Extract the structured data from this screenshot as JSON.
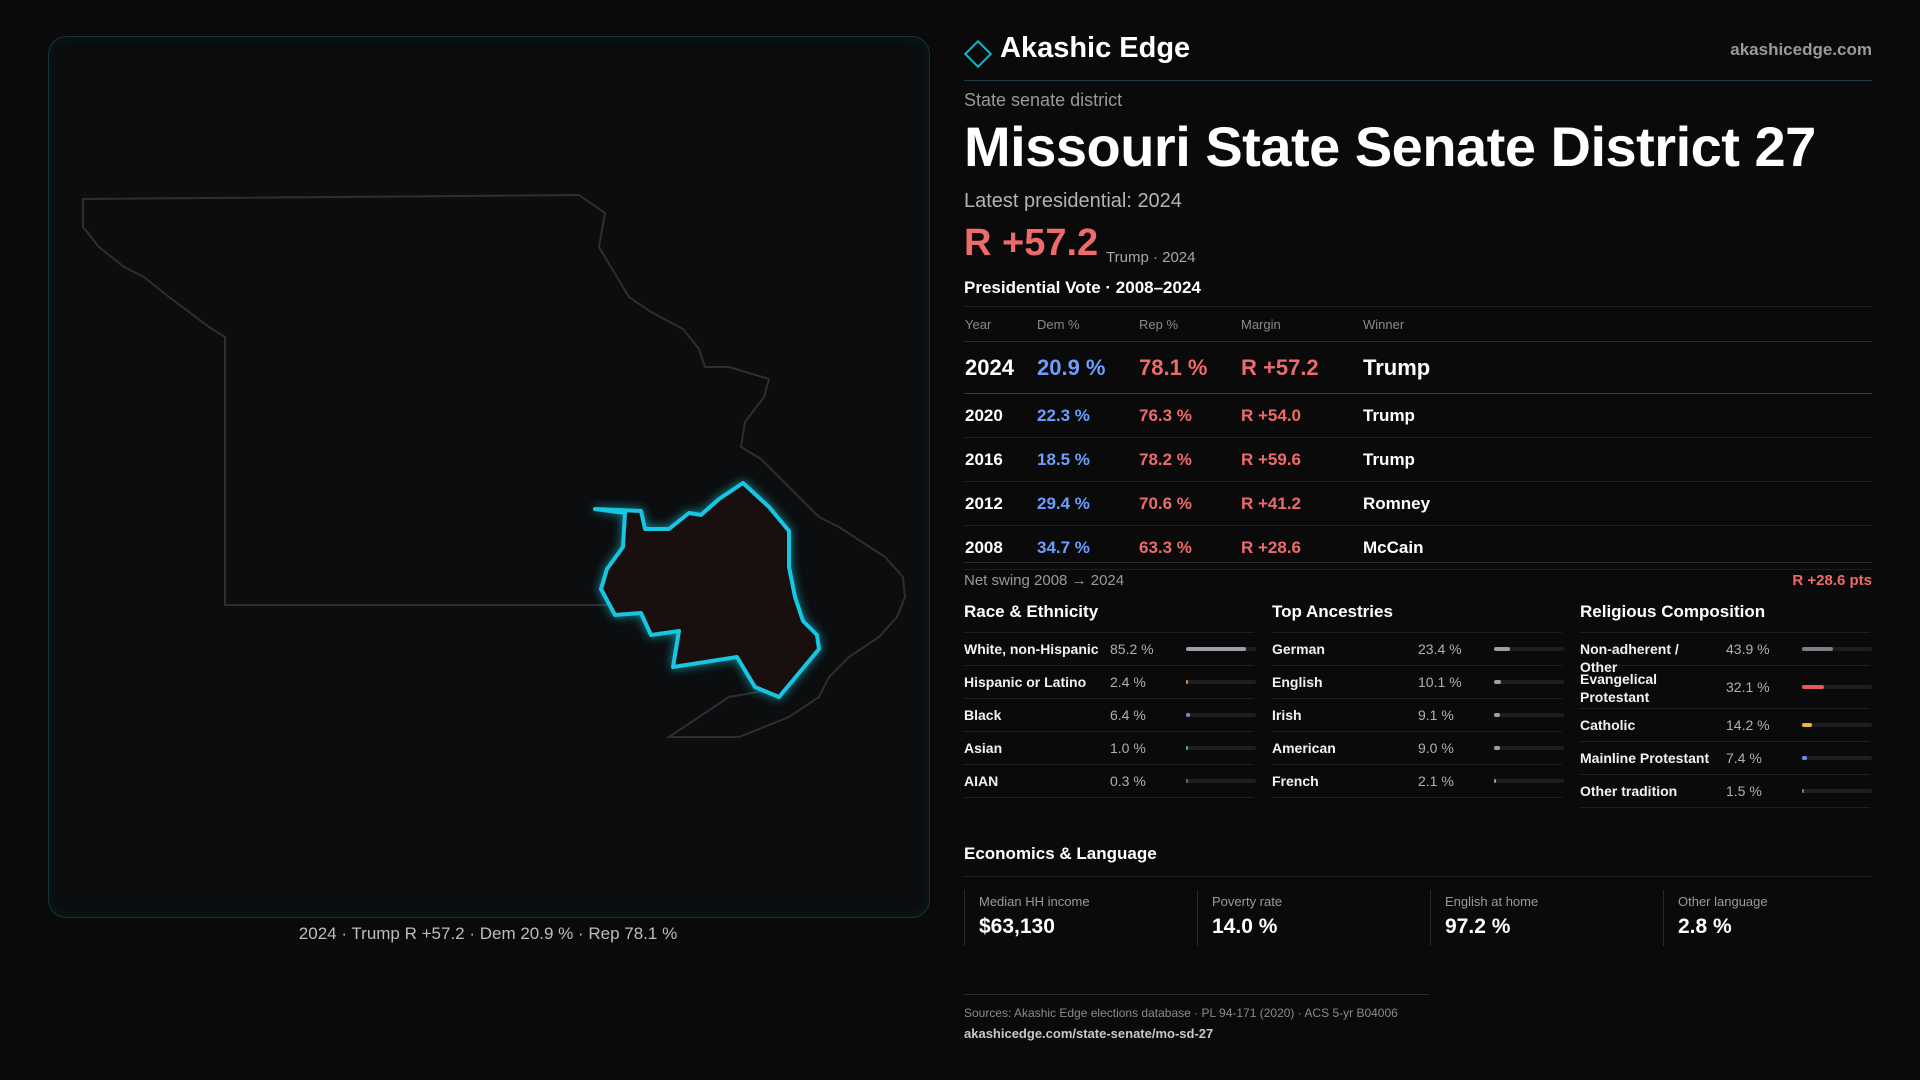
{
  "map": {
    "caption": "2024 · Trump R +57.2 · Dem 20.9 % · Rep 78.1 %",
    "district_color": "#17c6e0",
    "state_outline_color": "#2e2e31"
  },
  "brand": {
    "name": "Akashic Edge",
    "url": "akashicedge.com",
    "icon": "diamond-icon"
  },
  "header": {
    "eyebrow": "State senate district",
    "title": "Missouri State Senate District 27",
    "latest": "Latest presidential: 2024",
    "margin": "R +57.2",
    "margin_sub": "Trump · 2024"
  },
  "vote_table": {
    "title": "Presidential Vote · 2008–2024",
    "headers": [
      "Year",
      "Dem %",
      "Rep %",
      "Margin",
      "Winner"
    ],
    "rows": [
      {
        "year": "2024",
        "dem": "20.9 %",
        "rep": "78.1 %",
        "margin": "R +57.2",
        "winner": "Trump"
      },
      {
        "year": "2020",
        "dem": "22.3 %",
        "rep": "76.3 %",
        "margin": "R +54.0",
        "winner": "Trump"
      },
      {
        "year": "2016",
        "dem": "18.5 %",
        "rep": "78.2 %",
        "margin": "R +59.6",
        "winner": "Trump"
      },
      {
        "year": "2012",
        "dem": "29.4 %",
        "rep": "70.6 %",
        "margin": "R +41.2",
        "winner": "Romney"
      },
      {
        "year": "2008",
        "dem": "34.7 %",
        "rep": "63.3 %",
        "margin": "R +28.6",
        "winner": "McCain"
      }
    ]
  },
  "swing": {
    "label": "Net swing 2008 → 2024",
    "value": "R +28.6 pts"
  },
  "race": {
    "title": "Race & Ethnicity",
    "rows": [
      {
        "label": "White, non-Hispanic",
        "value": "85.2 %",
        "pct": 85.2,
        "color": "#9aa0aa"
      },
      {
        "label": "Hispanic or Latino",
        "value": "2.4 %",
        "pct": 2.4,
        "color": "#e8873a"
      },
      {
        "label": "Black",
        "value": "6.4 %",
        "pct": 6.4,
        "color": "#8a7fe8"
      },
      {
        "label": "Asian",
        "value": "1.0 %",
        "pct": 1.0,
        "color": "#3ab88a"
      },
      {
        "label": "AIAN",
        "value": "0.3 %",
        "pct": 0.3,
        "color": "#6a6a6a"
      }
    ]
  },
  "ancestry": {
    "title": "Top Ancestries",
    "rows": [
      {
        "label": "German",
        "value": "23.4 %",
        "pct": 23.4,
        "color": "#9aa0aa"
      },
      {
        "label": "English",
        "value": "10.1 %",
        "pct": 10.1,
        "color": "#9aa0aa"
      },
      {
        "label": "Irish",
        "value": "9.1 %",
        "pct": 9.1,
        "color": "#9aa0aa"
      },
      {
        "label": "American",
        "value": "9.0 %",
        "pct": 9.0,
        "color": "#9aa0aa"
      },
      {
        "label": "French",
        "value": "2.1 %",
        "pct": 2.1,
        "color": "#9aa0aa"
      }
    ]
  },
  "religion": {
    "title": "Religious Composition",
    "rows": [
      {
        "label": "Non-adherent / Other",
        "value": "43.9 %",
        "pct": 43.9,
        "color": "#7a808a"
      },
      {
        "label": "Evangelical Protestant",
        "value": "32.1 %",
        "pct": 32.1,
        "color": "#e85a5a"
      },
      {
        "label": "Catholic",
        "value": "14.2 %",
        "pct": 14.2,
        "color": "#e8b83a"
      },
      {
        "label": "Mainline Protestant",
        "value": "7.4 %",
        "pct": 7.4,
        "color": "#6b8fe8"
      },
      {
        "label": "Other tradition",
        "value": "1.5 %",
        "pct": 1.5,
        "color": "#7a7a7a"
      }
    ]
  },
  "economics": {
    "title": "Economics & Language",
    "cells": [
      {
        "label": "Median HH income",
        "value": "$63,130"
      },
      {
        "label": "Poverty rate",
        "value": "14.0 %"
      },
      {
        "label": "English at home",
        "value": "97.2 %"
      },
      {
        "label": "Other language",
        "value": "2.8 %"
      }
    ]
  },
  "footer": {
    "sources": "Sources: Akashic Edge elections database · PL 94-171 (2020) · ACS 5-yr B04006",
    "url": "akashicedge.com/state-senate/mo-sd-27"
  }
}
